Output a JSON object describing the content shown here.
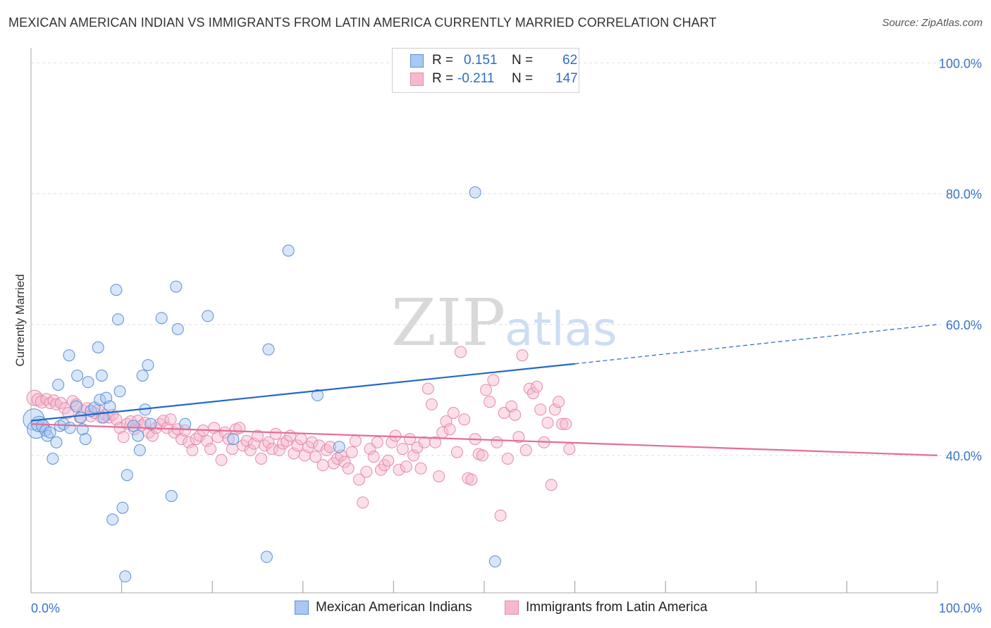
{
  "title": "MEXICAN AMERICAN INDIAN VS IMMIGRANTS FROM LATIN AMERICA CURRENTLY MARRIED CORRELATION CHART",
  "source": "Source: ZipAtlas.com",
  "watermark": {
    "zip": "ZIP",
    "atlas": "atlas"
  },
  "legend": {
    "r_label": "R =",
    "n_label": "N =",
    "series1": {
      "r": "0.151",
      "n": "62"
    },
    "series2": {
      "r": "-0.211",
      "n": "147"
    }
  },
  "bottom_legend": {
    "series1": "Mexican American Indians",
    "series2": "Immigrants from Latin America"
  },
  "colors": {
    "series1_fill": "#a9c8f2",
    "series1_stroke": "#5b8fd6",
    "series1_line": "#2468c8",
    "series2_fill": "#f7b8ce",
    "series2_stroke": "#e48aa9",
    "series2_line": "#e46d98",
    "axis_label": "#3a72c9",
    "grid": "#dddddd"
  },
  "chart_data": {
    "type": "scatter",
    "title": "MEXICAN AMERICAN INDIAN VS IMMIGRANTS FROM LATIN AMERICA CURRENTLY MARRIED CORRELATION CHART",
    "xlabel": "",
    "ylabel": "Currently Married",
    "xlim": [
      0,
      100
    ],
    "ylim": [
      19,
      101
    ],
    "x_tick_labels": {
      "left": "0.0%",
      "right": "100.0%"
    },
    "y_ticks": [
      {
        "value": 100,
        "label": "100.0%"
      },
      {
        "value": 80,
        "label": "80.0%"
      },
      {
        "value": 60,
        "label": "60.0%"
      },
      {
        "value": 40,
        "label": "40.0%"
      }
    ],
    "grid": true,
    "series": [
      {
        "name": "Mexican American Indians",
        "r": 0.151,
        "n": 62,
        "trend": {
          "solid": [
            [
              0,
              45.3
            ],
            [
              60,
              54.0
            ]
          ],
          "dashed": [
            [
              60,
              54.0
            ],
            [
              100,
              60.0
            ]
          ]
        },
        "points": [
          [
            0.3,
            45.5,
            15
          ],
          [
            0.6,
            44.0,
            13
          ],
          [
            0.9,
            44.8,
            11
          ],
          [
            1.3,
            44.5,
            9
          ],
          [
            1.6,
            43.8,
            8
          ],
          [
            1.8,
            43.0,
            8
          ],
          [
            2.1,
            43.5,
            8
          ],
          [
            2.4,
            39.5,
            8
          ],
          [
            2.8,
            42.0,
            8
          ],
          [
            3.0,
            50.8,
            8
          ],
          [
            3.2,
            44.5,
            8
          ],
          [
            3.6,
            44.8,
            8
          ],
          [
            4.2,
            55.3,
            8
          ],
          [
            4.3,
            44.2,
            8
          ],
          [
            5.0,
            47.5,
            8
          ],
          [
            5.1,
            52.2,
            8
          ],
          [
            5.5,
            45.8,
            8
          ],
          [
            5.7,
            44.0,
            8
          ],
          [
            6.0,
            42.5,
            8
          ],
          [
            6.3,
            51.2,
            8
          ],
          [
            6.6,
            46.8,
            8
          ],
          [
            7.0,
            47.3,
            8
          ],
          [
            7.4,
            56.5,
            8
          ],
          [
            7.6,
            48.5,
            8
          ],
          [
            7.8,
            52.2,
            8
          ],
          [
            8.0,
            45.8,
            8
          ],
          [
            8.3,
            48.8,
            8
          ],
          [
            8.7,
            47.5,
            8
          ],
          [
            9.0,
            30.2,
            8
          ],
          [
            9.4,
            65.3,
            8
          ],
          [
            9.6,
            60.8,
            8
          ],
          [
            9.8,
            49.8,
            8
          ],
          [
            10.1,
            32.0,
            8
          ],
          [
            10.4,
            21.5,
            8
          ],
          [
            10.6,
            37.0,
            8
          ],
          [
            11.3,
            44.5,
            8
          ],
          [
            11.8,
            43.0,
            8
          ],
          [
            12.0,
            40.8,
            8
          ],
          [
            12.3,
            52.2,
            8
          ],
          [
            12.6,
            47.0,
            8
          ],
          [
            12.9,
            53.8,
            8
          ],
          [
            13.2,
            44.8,
            8
          ],
          [
            14.4,
            61.0,
            8
          ],
          [
            15.5,
            33.8,
            8
          ],
          [
            16.0,
            65.8,
            8
          ],
          [
            16.2,
            59.3,
            8
          ],
          [
            17.0,
            44.8,
            8
          ],
          [
            19.5,
            61.3,
            8
          ],
          [
            22.3,
            42.5,
            8
          ],
          [
            26.0,
            24.5,
            8
          ],
          [
            26.2,
            56.2,
            8
          ],
          [
            28.4,
            71.3,
            8
          ],
          [
            31.6,
            49.2,
            8
          ],
          [
            34.0,
            41.3,
            8
          ],
          [
            49.0,
            80.2,
            8
          ],
          [
            51.2,
            23.8,
            8
          ]
        ]
      },
      {
        "name": "Immigrants from Latin America",
        "r": -0.211,
        "n": 147,
        "trend": {
          "solid": [
            [
              0,
              44.8
            ],
            [
              100,
              40.0
            ]
          ]
        },
        "points": [
          [
            0.4,
            48.8,
            11
          ],
          [
            0.8,
            48.5,
            9
          ],
          [
            1.2,
            48.2,
            9
          ],
          [
            1.7,
            48.6,
            8
          ],
          [
            2.1,
            48.0,
            8
          ],
          [
            2.5,
            48.4,
            8
          ],
          [
            2.8,
            47.8,
            8
          ],
          [
            3.3,
            48.0,
            8
          ],
          [
            3.7,
            47.2,
            8
          ],
          [
            4.1,
            46.5,
            8
          ],
          [
            4.6,
            48.3,
            8
          ],
          [
            5.0,
            47.8,
            8
          ],
          [
            5.4,
            45.8,
            8
          ],
          [
            5.8,
            46.8,
            8
          ],
          [
            6.2,
            47.2,
            8
          ],
          [
            6.6,
            46.0,
            8
          ],
          [
            7.0,
            46.5,
            8
          ],
          [
            7.4,
            47.0,
            8
          ],
          [
            7.8,
            45.8,
            8
          ],
          [
            8.2,
            46.2,
            8
          ],
          [
            8.6,
            45.8,
            8
          ],
          [
            9.0,
            46.2,
            8
          ],
          [
            9.4,
            45.5,
            8
          ],
          [
            9.8,
            44.2,
            8
          ],
          [
            10.2,
            42.8,
            8
          ],
          [
            10.6,
            44.8,
            8
          ],
          [
            11.0,
            45.2,
            8
          ],
          [
            11.4,
            44.0,
            8
          ],
          [
            11.8,
            45.3,
            8
          ],
          [
            12.2,
            44.6,
            8
          ],
          [
            12.6,
            45.0,
            8
          ],
          [
            13.0,
            43.5,
            8
          ],
          [
            13.4,
            43.0,
            8
          ],
          [
            13.8,
            44.2,
            8
          ],
          [
            14.2,
            44.8,
            8
          ],
          [
            14.6,
            45.3,
            8
          ],
          [
            15.0,
            44.2,
            8
          ],
          [
            15.4,
            45.5,
            8
          ],
          [
            15.8,
            43.5,
            8
          ],
          [
            16.2,
            44.0,
            8
          ],
          [
            16.6,
            42.5,
            8
          ],
          [
            17.0,
            43.8,
            8
          ],
          [
            17.4,
            42.0,
            8
          ],
          [
            17.8,
            40.8,
            8
          ],
          [
            18.2,
            42.5,
            8
          ],
          [
            18.6,
            43.0,
            8
          ],
          [
            19.0,
            43.8,
            8
          ],
          [
            19.4,
            42.2,
            8
          ],
          [
            19.8,
            41.0,
            8
          ],
          [
            20.2,
            44.2,
            8
          ],
          [
            20.6,
            42.8,
            8
          ],
          [
            21.0,
            39.3,
            8
          ],
          [
            21.4,
            43.5,
            8
          ],
          [
            21.8,
            42.5,
            8
          ],
          [
            22.2,
            41.0,
            8
          ],
          [
            22.6,
            44.0,
            8
          ],
          [
            23.0,
            44.2,
            8
          ],
          [
            23.4,
            41.5,
            8
          ],
          [
            23.8,
            42.2,
            8
          ],
          [
            24.2,
            40.8,
            8
          ],
          [
            24.6,
            41.8,
            8
          ],
          [
            25.0,
            43.0,
            8
          ],
          [
            25.4,
            39.5,
            8
          ],
          [
            25.8,
            41.5,
            8
          ],
          [
            26.2,
            42.0,
            8
          ],
          [
            26.6,
            41.0,
            8
          ],
          [
            27.0,
            43.3,
            8
          ],
          [
            27.4,
            40.8,
            8
          ],
          [
            27.8,
            41.8,
            8
          ],
          [
            28.2,
            42.2,
            8
          ],
          [
            28.6,
            43.0,
            8
          ],
          [
            29.0,
            40.3,
            8
          ],
          [
            29.4,
            41.5,
            8
          ],
          [
            29.8,
            42.5,
            8
          ],
          [
            30.2,
            40.0,
            8
          ],
          [
            30.6,
            41.3,
            8
          ],
          [
            31.0,
            42.0,
            8
          ],
          [
            31.4,
            39.8,
            8
          ],
          [
            31.8,
            41.5,
            8
          ],
          [
            32.2,
            38.5,
            8
          ],
          [
            32.6,
            40.8,
            8
          ],
          [
            33.0,
            41.3,
            8
          ],
          [
            33.4,
            38.8,
            8
          ],
          [
            33.8,
            39.5,
            8
          ],
          [
            34.2,
            40.0,
            8
          ],
          [
            34.6,
            39.0,
            8
          ],
          [
            35.0,
            38.0,
            8
          ],
          [
            35.4,
            40.5,
            8
          ],
          [
            35.8,
            42.2,
            8
          ],
          [
            36.2,
            36.3,
            8
          ],
          [
            36.6,
            32.8,
            8
          ],
          [
            37.0,
            37.5,
            8
          ],
          [
            37.4,
            41.0,
            8
          ],
          [
            37.8,
            39.8,
            8
          ],
          [
            38.2,
            42.0,
            8
          ],
          [
            38.6,
            37.8,
            8
          ],
          [
            39.0,
            38.5,
            8
          ],
          [
            39.4,
            39.2,
            8
          ],
          [
            39.8,
            42.0,
            8
          ],
          [
            40.2,
            43.0,
            8
          ],
          [
            40.6,
            37.8,
            8
          ],
          [
            41.0,
            41.0,
            8
          ],
          [
            41.4,
            38.3,
            8
          ],
          [
            41.8,
            42.5,
            8
          ],
          [
            42.2,
            40.0,
            8
          ],
          [
            42.6,
            41.2,
            8
          ],
          [
            43.0,
            38.0,
            8
          ],
          [
            43.4,
            42.0,
            8
          ],
          [
            43.8,
            50.2,
            8
          ],
          [
            44.2,
            47.8,
            8
          ],
          [
            44.6,
            42.0,
            8
          ],
          [
            45.0,
            36.8,
            8
          ],
          [
            45.4,
            43.5,
            8
          ],
          [
            45.8,
            45.2,
            8
          ],
          [
            46.2,
            44.0,
            8
          ],
          [
            46.6,
            46.5,
            8
          ],
          [
            47.0,
            40.5,
            8
          ],
          [
            47.4,
            55.8,
            8
          ],
          [
            47.8,
            45.5,
            8
          ],
          [
            48.2,
            36.5,
            8
          ],
          [
            48.6,
            36.3,
            8
          ],
          [
            49.0,
            42.5,
            8
          ],
          [
            49.4,
            40.2,
            8
          ],
          [
            49.8,
            40.0,
            8
          ],
          [
            50.2,
            50.0,
            8
          ],
          [
            50.6,
            48.2,
            8
          ],
          [
            51.0,
            51.5,
            8
          ],
          [
            51.4,
            42.0,
            8
          ],
          [
            51.8,
            30.8,
            8
          ],
          [
            52.2,
            46.5,
            8
          ],
          [
            52.6,
            39.5,
            8
          ],
          [
            53.0,
            47.5,
            8
          ],
          [
            53.4,
            46.2,
            8
          ],
          [
            53.8,
            42.8,
            8
          ],
          [
            54.2,
            55.3,
            8
          ],
          [
            54.6,
            40.8,
            8
          ],
          [
            55.0,
            50.2,
            8
          ],
          [
            55.4,
            49.5,
            8
          ],
          [
            55.8,
            50.5,
            8
          ],
          [
            56.2,
            47.0,
            8
          ],
          [
            56.6,
            42.0,
            8
          ],
          [
            57.0,
            45.0,
            8
          ],
          [
            57.4,
            35.5,
            8
          ],
          [
            57.8,
            47.0,
            8
          ],
          [
            58.2,
            48.2,
            8
          ],
          [
            58.6,
            44.8,
            8
          ],
          [
            59.0,
            44.8,
            8
          ],
          [
            59.4,
            41.0,
            8
          ]
        ]
      }
    ]
  }
}
